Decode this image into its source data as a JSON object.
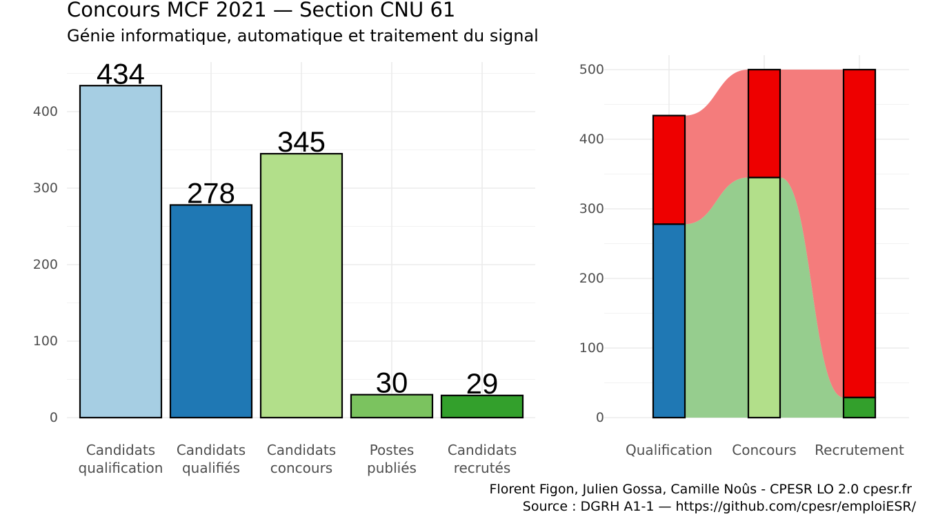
{
  "title": "Concours MCF  2021  —  Section CNU 61",
  "subtitle": "Génie informatique, automatique et traitement du signal",
  "caption_line1": "Florent Figon, Julien Gossa, Camille Noûs - CPESR LO 2.0 cpesr.fr",
  "caption_line2": "Source : DGRH A1-1 — https://github.com/cpesr/emploiESR/",
  "chart_data": [
    {
      "type": "bar",
      "categories": [
        [
          "Candidats",
          "qualification"
        ],
        [
          "Candidats",
          "qualifiés"
        ],
        [
          "Candidats",
          "concours"
        ],
        [
          "Postes",
          "publiés"
        ],
        [
          "Candidats",
          "recrutés"
        ]
      ],
      "values": [
        434,
        278,
        345,
        30,
        29
      ],
      "colors": [
        "#a6cee3",
        "#1f78b4",
        "#b2df8a",
        "#7bc35f",
        "#33a02c"
      ],
      "ylim": [
        0,
        450
      ],
      "yticks": [
        0,
        100,
        200,
        300,
        400
      ],
      "grid": true
    },
    {
      "type": "bar",
      "stacked": true,
      "categories": [
        "Qualification",
        "Concours",
        "Recrutement"
      ],
      "series": [
        {
          "values": [
            278,
            345,
            29
          ],
          "colors": [
            "#1f78b4",
            "#b2df8a",
            "#33a02c"
          ]
        },
        {
          "values": [
            156,
            155,
            471
          ],
          "color": "#ee0000"
        }
      ],
      "flow_colors": {
        "lower": "#96cd8e",
        "upper": "#f47c7c"
      },
      "ylim": [
        0,
        500
      ],
      "yticks": [
        0,
        100,
        200,
        300,
        400,
        500
      ],
      "grid": true
    }
  ]
}
